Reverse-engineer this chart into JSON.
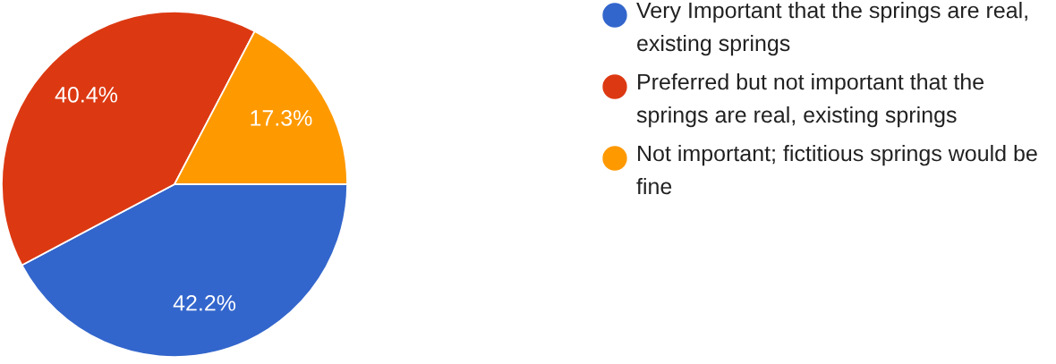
{
  "chart_data": {
    "type": "pie",
    "categories": [
      "Very Important that the springs are real, existing springs",
      "Preferred but not important that the springs are real, existing springs",
      "Not important; fictitious springs would be fine"
    ],
    "values": [
      42.2,
      40.4,
      17.3
    ],
    "colors": [
      "#3366cc",
      "#dc3912",
      "#ff9900"
    ],
    "value_labels": [
      "42.2%",
      "40.4%",
      "17.3%"
    ],
    "legend": "right"
  }
}
